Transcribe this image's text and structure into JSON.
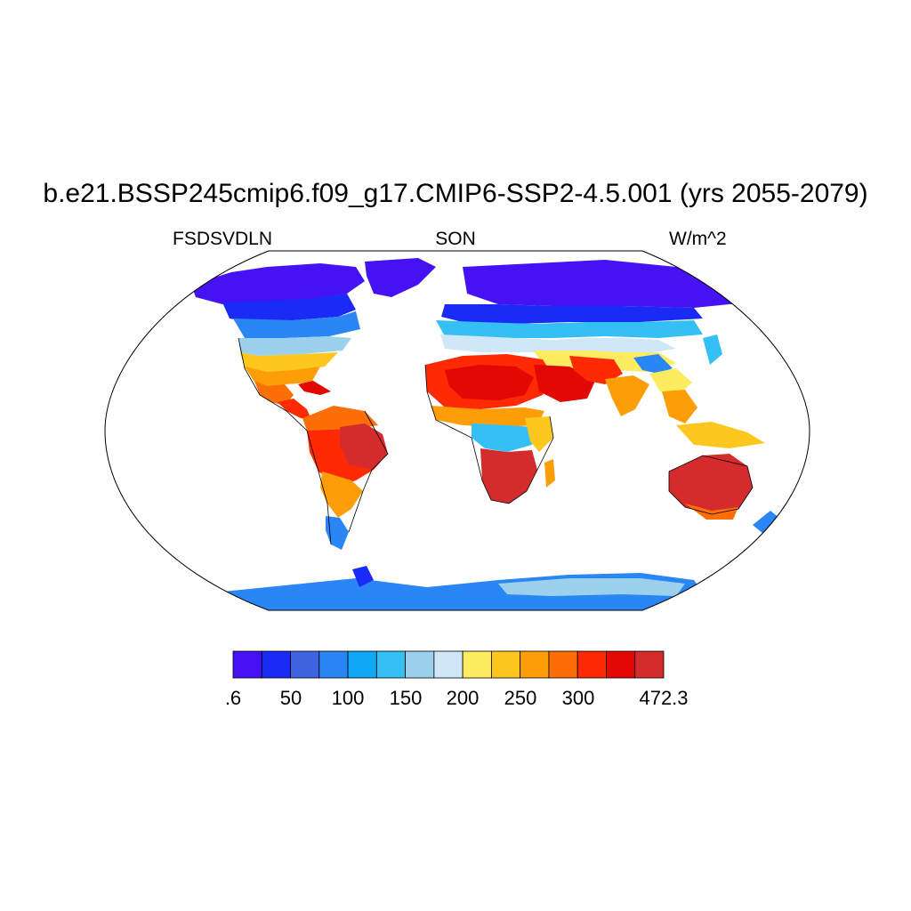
{
  "title": "b.e21.BSSP245cmip6.f09_g17.CMIP6-SSP2-4.5.001 (yrs 2055-2079)",
  "subtitle_left": "FSDSVDLN",
  "subtitle_center": "SON",
  "subtitle_right": "W/m^2",
  "map": {
    "projection": "Robinson-like (oval)",
    "ocean_color": "#ffffff",
    "coastlines": true
  },
  "colorbar": {
    "colors": [
      "#4512f4",
      "#1a2bf5",
      "#3d63e0",
      "#2a86f5",
      "#10a8f5",
      "#35c0f5",
      "#9bd1ed",
      "#cfe7f6",
      "#fdec60",
      "#fdc71f",
      "#fd9e09",
      "#fc6e07",
      "#fd2a04",
      "#e20804",
      "#d42c2c"
    ],
    "tick_labels": [
      ".6",
      "50",
      "100",
      "150",
      "200",
      "250",
      "300",
      "472.3"
    ]
  }
}
